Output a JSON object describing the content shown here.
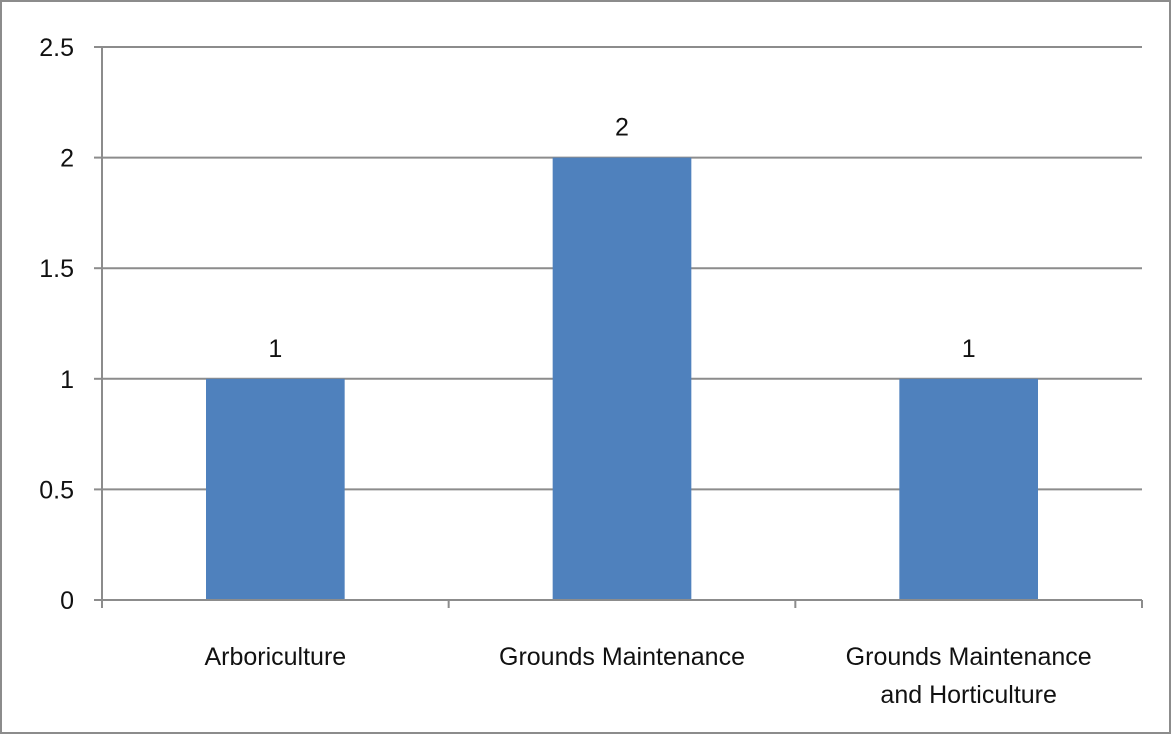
{
  "chart_data": {
    "type": "bar",
    "categories": [
      "Arboriculture",
      "Grounds Maintenance",
      "Grounds Maintenance and Horticulture"
    ],
    "category_lines": [
      [
        "Arboriculture"
      ],
      [
        "Grounds Maintenance"
      ],
      [
        "Grounds Maintenance",
        "and Horticulture"
      ]
    ],
    "values": [
      1,
      2,
      1
    ],
    "data_labels": [
      "1",
      "2",
      "1"
    ],
    "y_ticks": [
      0,
      0.5,
      1,
      1.5,
      2,
      2.5
    ],
    "y_tick_labels": [
      "0",
      "0.5",
      "1",
      "1.5",
      "2",
      "2.5"
    ],
    "ylim": [
      0,
      2.5
    ],
    "title": "",
    "xlabel": "",
    "ylabel": "",
    "grid": true,
    "legend": "none",
    "bar_color": "#4f81bd",
    "grid_color": "#8c8c8c"
  }
}
